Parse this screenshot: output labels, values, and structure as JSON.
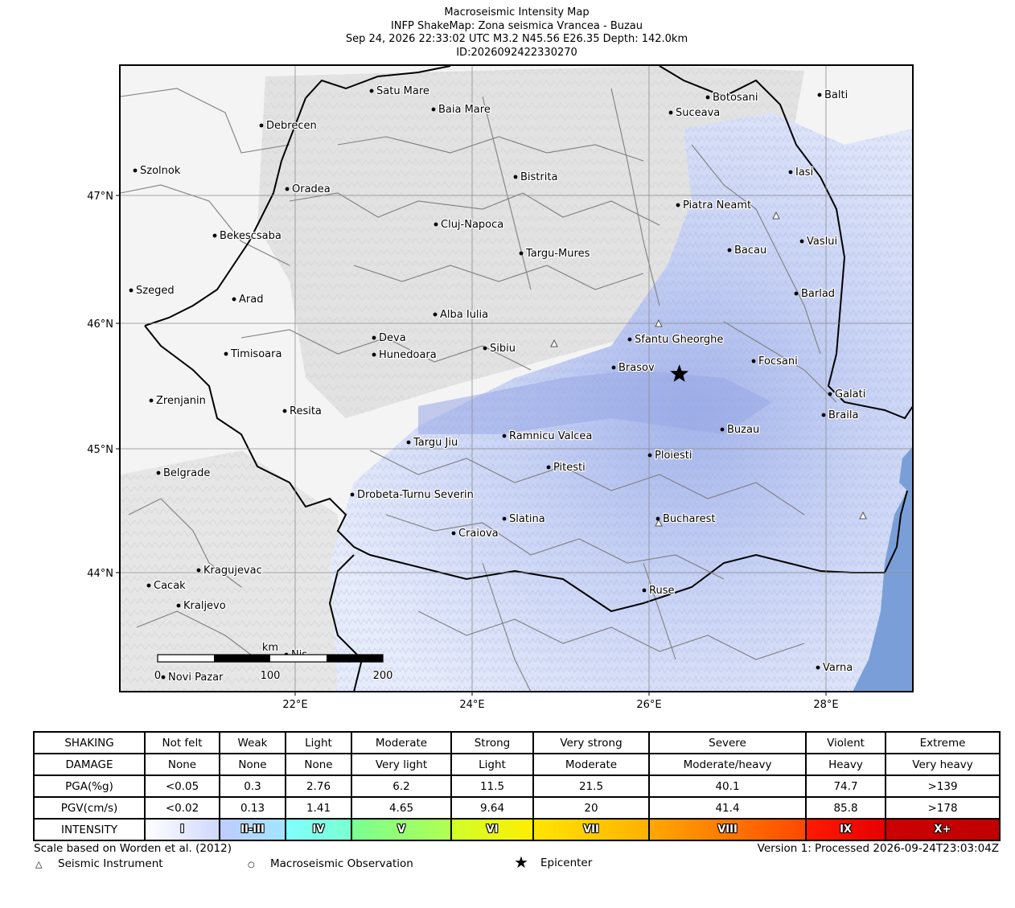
{
  "header": {
    "line1": "Macroseismic Intensity Map",
    "line2": "INFP ShakeMap: Zona seismica Vrancea - Buzau",
    "line3": "Sep 24, 2026 22:33:02 UTC M3.2 N45.56 E26.35 Depth: 142.0km",
    "line4": "ID:2026092422330270"
  },
  "map": {
    "extent": {
      "lon_min": 20.0,
      "lon_max": 29.0,
      "lat_min": 43.0,
      "lat_max": 48.05
    },
    "lon_ticks": [
      "22°E",
      "24°E",
      "26°E",
      "28°E"
    ],
    "lat_ticks": [
      "47°N",
      "46°N",
      "45°N",
      "44°N"
    ],
    "epicenter": {
      "lat": 45.56,
      "lon": 26.35
    },
    "cities": [
      {
        "name": "Satu Mare"
      },
      {
        "name": "Baia Mare"
      },
      {
        "name": "Debrecen"
      },
      {
        "name": "Szolnok"
      },
      {
        "name": "Oradea"
      },
      {
        "name": "Bistrita"
      },
      {
        "name": "Botosani"
      },
      {
        "name": "Balti"
      },
      {
        "name": "Suceava"
      },
      {
        "name": "Iasi"
      },
      {
        "name": "Piatra Neamt"
      },
      {
        "name": "Cluj-Napoca"
      },
      {
        "name": "Bekescsaba"
      },
      {
        "name": "Vaslui"
      },
      {
        "name": "Targu-Mures"
      },
      {
        "name": "Bacau"
      },
      {
        "name": "Szeged"
      },
      {
        "name": "Arad"
      },
      {
        "name": "Barlad"
      },
      {
        "name": "Alba Iulia"
      },
      {
        "name": "Deva"
      },
      {
        "name": "Sfantu Gheorghe"
      },
      {
        "name": "Sibiu"
      },
      {
        "name": "Timisoara"
      },
      {
        "name": "Hunedoara"
      },
      {
        "name": "Focsani"
      },
      {
        "name": "Brasov"
      },
      {
        "name": "Zrenjanin"
      },
      {
        "name": "Galati"
      },
      {
        "name": "Resita"
      },
      {
        "name": "Braila"
      },
      {
        "name": "Buzau"
      },
      {
        "name": "Ramnicu Valcea"
      },
      {
        "name": "Targu Jiu"
      },
      {
        "name": "Ploiesti"
      },
      {
        "name": "Belgrade"
      },
      {
        "name": "Pitesti"
      },
      {
        "name": "Drobeta-Turnu Severin"
      },
      {
        "name": "Slatina"
      },
      {
        "name": "Bucharest"
      },
      {
        "name": "Craiova"
      },
      {
        "name": "Kragujevac"
      },
      {
        "name": "Cacak"
      },
      {
        "name": "Ruse"
      },
      {
        "name": "Kraljevo"
      },
      {
        "name": "Nis"
      },
      {
        "name": "Varna"
      },
      {
        "name": "Novi Pazar"
      }
    ],
    "scale_bar": {
      "unit": "km",
      "labels": [
        "0",
        "100",
        "200"
      ]
    },
    "colors": {
      "land": "#f4f4f4",
      "water": "#7a9fd8",
      "shaking": "#c9d4f5",
      "shaking_strong": "#a8b8ec",
      "border": "#000000",
      "admin": "#808080"
    }
  },
  "legend": {
    "rows": [
      {
        "label": "SHAKING",
        "cells": [
          "Not felt",
          "Weak",
          "Light",
          "Moderate",
          "Strong",
          "Very strong",
          "Severe",
          "Violent",
          "Extreme"
        ]
      },
      {
        "label": "DAMAGE",
        "cells": [
          "None",
          "None",
          "None",
          "Very light",
          "Light",
          "Moderate",
          "Moderate/heavy",
          "Heavy",
          "Very heavy"
        ]
      },
      {
        "label": "PGA(%g)",
        "cells": [
          "<0.05",
          "0.3",
          "2.76",
          "6.2",
          "11.5",
          "21.5",
          "40.1",
          "74.7",
          ">139"
        ]
      },
      {
        "label": "PGV(cm/s)",
        "cells": [
          "<0.02",
          "0.13",
          "1.41",
          "4.65",
          "9.64",
          "20",
          "41.4",
          "85.8",
          ">178"
        ]
      }
    ],
    "intensity": {
      "label": "INTENSITY",
      "cells": [
        {
          "text": "I",
          "color": "#ffffff",
          "color_end": "#cfd8ff"
        },
        {
          "text": "II-III",
          "color": "#bfccff",
          "color_end": "#a0e6ff"
        },
        {
          "text": "IV",
          "color": "#80ffff",
          "color_end": "#7affd0"
        },
        {
          "text": "V",
          "color": "#7aff93",
          "color_end": "#b0ff50"
        },
        {
          "text": "VI",
          "color": "#d0ff2a",
          "color_end": "#ffee00"
        },
        {
          "text": "VII",
          "color": "#ffe600",
          "color_end": "#ffb000"
        },
        {
          "text": "VIII",
          "color": "#ffa800",
          "color_end": "#ff4800"
        },
        {
          "text": "IX",
          "color": "#ff1a00",
          "color_end": "#e80000"
        },
        {
          "text": "X+",
          "color": "#cc0000",
          "color_end": "#c00000"
        }
      ]
    }
  },
  "footer": {
    "scale_note": "Scale based on Worden et al. (2012)",
    "version": "Version 1: Processed 2026-09-24T23:03:04Z",
    "instrument": "Seismic Instrument",
    "observation": "Macroseismic Observation",
    "epicenter": "Epicenter"
  }
}
